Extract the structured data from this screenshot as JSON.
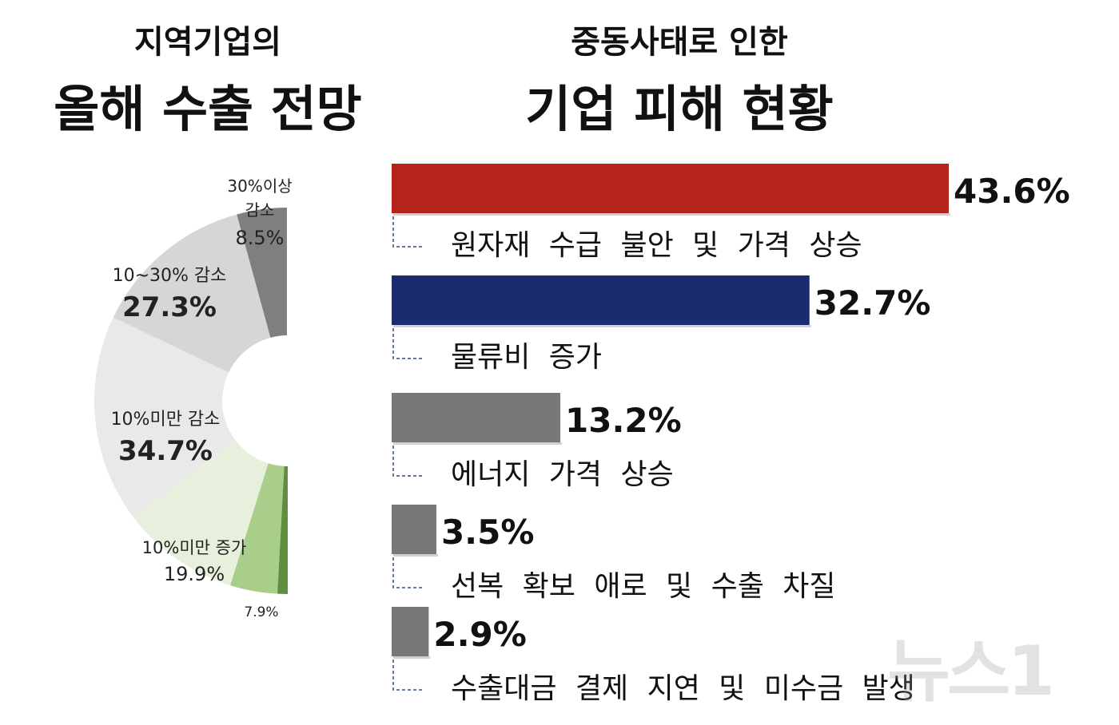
{
  "left_title": {
    "line1": "지역기업의",
    "line2": "올해 수출 전망"
  },
  "right_title": {
    "line1": "중동사태로 인한",
    "line2": "기업 피해 현황"
  },
  "watermark": "뉴스1",
  "chart_data": [
    {
      "type": "pie",
      "style": "half-donut",
      "slices": [
        {
          "label": "30%이상 감소",
          "display_value": "8.5%",
          "value": 8.5,
          "color": "#7f7f7f"
        },
        {
          "label": "10~30% 감소",
          "display_value": "27.3%",
          "value": 27.3,
          "color": "#d7d5d6"
        },
        {
          "label": "10%미만 감소",
          "display_value": "34.7%",
          "value": 34.7,
          "color": "#e9e9e9"
        },
        {
          "label": "10%미만 증가",
          "display_value": "19.9%",
          "value": 19.9,
          "color": "#e7f0dc"
        },
        {
          "label": "",
          "display_value": "7.9%",
          "value": 7.9,
          "color": "#a9ce8a"
        },
        {
          "label": "",
          "display_value": "",
          "value": 1.7,
          "color": "#5e8e3e"
        }
      ]
    },
    {
      "type": "bar",
      "orientation": "horizontal",
      "categories": [
        "원자재 수급 불안 및 가격 상승",
        "물류비 증가",
        "에너지 가격 상승",
        "선복 확보 애로 및 수출 차질",
        "수출대금 결제 지연 및 미수금 발생"
      ],
      "values": [
        43.6,
        32.7,
        13.2,
        3.5,
        2.9
      ],
      "value_labels": [
        "43.6%",
        "32.7%",
        "13.2%",
        "3.5%",
        "2.9%"
      ],
      "colors": [
        "#b5241b",
        "#1a2b6e",
        "#7a7778",
        "#7a7778",
        "#7a7778"
      ]
    }
  ]
}
